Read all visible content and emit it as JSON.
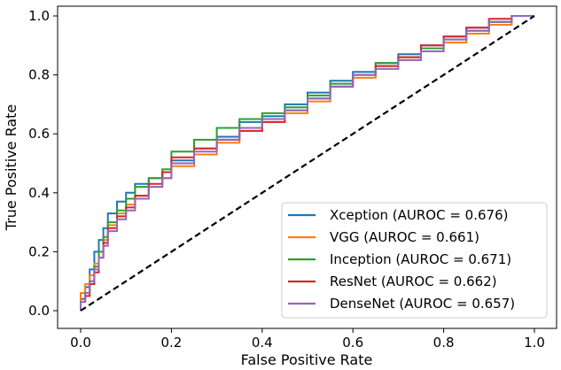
{
  "chart_data": {
    "type": "line",
    "title": "",
    "xlabel": "False Positive Rate",
    "ylabel": "True Positive Rate",
    "xlim": [
      0.0,
      1.0
    ],
    "ylim": [
      0.0,
      1.0
    ],
    "xticks": [
      "0.0",
      "0.2",
      "0.4",
      "0.6",
      "0.8",
      "1.0"
    ],
    "yticks": [
      "0.0",
      "0.2",
      "0.4",
      "0.6",
      "0.8",
      "1.0"
    ],
    "grid": false,
    "legend_position": "bottom-right",
    "diagonal": {
      "x": [
        0,
        1
      ],
      "y": [
        0,
        1
      ],
      "style": "dashed",
      "color": "#000000"
    },
    "series": [
      {
        "name": "Xception (AUROC = 0.676)",
        "color": "#1f77b4",
        "x": [
          0,
          0.01,
          0.02,
          0.03,
          0.04,
          0.05,
          0.06,
          0.08,
          0.1,
          0.12,
          0.15,
          0.18,
          0.2,
          0.25,
          0.3,
          0.35,
          0.4,
          0.45,
          0.5,
          0.55,
          0.6,
          0.65,
          0.7,
          0.75,
          0.8,
          0.85,
          0.9,
          0.95,
          1.0
        ],
        "y": [
          0,
          0.04,
          0.08,
          0.14,
          0.2,
          0.24,
          0.28,
          0.33,
          0.37,
          0.4,
          0.43,
          0.45,
          0.47,
          0.51,
          0.55,
          0.59,
          0.64,
          0.66,
          0.7,
          0.74,
          0.78,
          0.81,
          0.84,
          0.87,
          0.9,
          0.93,
          0.96,
          0.98,
          1.0
        ]
      },
      {
        "name": "VGG (AUROC = 0.661)",
        "color": "#ff7f0e",
        "x": [
          0,
          0.01,
          0.02,
          0.03,
          0.04,
          0.05,
          0.06,
          0.08,
          0.1,
          0.12,
          0.15,
          0.18,
          0.2,
          0.25,
          0.3,
          0.35,
          0.4,
          0.45,
          0.5,
          0.55,
          0.6,
          0.65,
          0.7,
          0.75,
          0.8,
          0.85,
          0.9,
          0.95,
          1.0
        ],
        "y": [
          0,
          0.06,
          0.09,
          0.12,
          0.16,
          0.2,
          0.24,
          0.29,
          0.33,
          0.36,
          0.39,
          0.42,
          0.45,
          0.49,
          0.53,
          0.57,
          0.61,
          0.64,
          0.67,
          0.71,
          0.76,
          0.79,
          0.83,
          0.85,
          0.88,
          0.91,
          0.94,
          0.97,
          1.0
        ]
      },
      {
        "name": "Inception (AUROC = 0.671)",
        "color": "#2ca02c",
        "x": [
          0,
          0.01,
          0.02,
          0.03,
          0.04,
          0.05,
          0.06,
          0.08,
          0.1,
          0.12,
          0.15,
          0.18,
          0.2,
          0.25,
          0.3,
          0.35,
          0.4,
          0.45,
          0.5,
          0.55,
          0.6,
          0.65,
          0.7,
          0.75,
          0.8,
          0.85,
          0.9,
          0.95,
          1.0
        ],
        "y": [
          0,
          0.03,
          0.06,
          0.1,
          0.15,
          0.2,
          0.25,
          0.3,
          0.34,
          0.38,
          0.42,
          0.45,
          0.48,
          0.54,
          0.58,
          0.62,
          0.65,
          0.67,
          0.69,
          0.73,
          0.77,
          0.8,
          0.84,
          0.86,
          0.89,
          0.92,
          0.95,
          0.98,
          1.0
        ]
      },
      {
        "name": "ResNet (AUROC = 0.662)",
        "color": "#d62728",
        "x": [
          0,
          0.01,
          0.02,
          0.03,
          0.04,
          0.05,
          0.06,
          0.08,
          0.1,
          0.12,
          0.15,
          0.18,
          0.2,
          0.25,
          0.3,
          0.35,
          0.4,
          0.45,
          0.5,
          0.55,
          0.6,
          0.65,
          0.7,
          0.75,
          0.8,
          0.85,
          0.9,
          0.95,
          1.0
        ],
        "y": [
          0,
          0.03,
          0.05,
          0.09,
          0.13,
          0.18,
          0.23,
          0.28,
          0.32,
          0.35,
          0.39,
          0.43,
          0.47,
          0.52,
          0.55,
          0.58,
          0.61,
          0.64,
          0.68,
          0.72,
          0.76,
          0.8,
          0.83,
          0.86,
          0.9,
          0.93,
          0.96,
          0.99,
          1.0
        ]
      },
      {
        "name": "DenseNet (AUROC = 0.657)",
        "color": "#9467bd",
        "x": [
          0,
          0.01,
          0.02,
          0.03,
          0.04,
          0.05,
          0.06,
          0.08,
          0.1,
          0.12,
          0.15,
          0.18,
          0.2,
          0.25,
          0.3,
          0.35,
          0.4,
          0.45,
          0.5,
          0.55,
          0.6,
          0.65,
          0.7,
          0.75,
          0.8,
          0.85,
          0.9,
          0.95,
          1.0
        ],
        "y": [
          0,
          0.03,
          0.06,
          0.1,
          0.14,
          0.18,
          0.22,
          0.27,
          0.31,
          0.34,
          0.38,
          0.42,
          0.45,
          0.5,
          0.54,
          0.58,
          0.62,
          0.65,
          0.68,
          0.72,
          0.76,
          0.8,
          0.82,
          0.85,
          0.88,
          0.92,
          0.95,
          0.98,
          1.0
        ]
      }
    ]
  }
}
